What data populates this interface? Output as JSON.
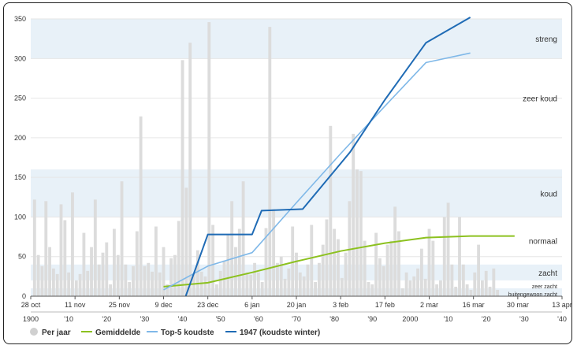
{
  "colors": {
    "band": "#e8f1f8",
    "bars": "#dcdcdc",
    "average": "#8cc11f",
    "top5": "#7fb8e8",
    "winter1947": "#1f6bb5",
    "grid": "#e6e6e6",
    "axis": "#555555"
  },
  "chart_data": {
    "type": "bar",
    "ylim": [
      0,
      360
    ],
    "grid": true,
    "legend_position": "bottom",
    "y_ticks": [
      "0",
      "50",
      "100",
      "150",
      "200",
      "250",
      "300",
      "350"
    ],
    "x_ticks_date": [
      "28 oct",
      "11 nov",
      "25 nov",
      "9 dec",
      "23 dec",
      "6 jan",
      "20 jan",
      "3 feb",
      "17 feb",
      "2 mar",
      "16 mar",
      "30 mar",
      "13 apr"
    ],
    "x_ticks_year": [
      "1900",
      "'10",
      "'20",
      "'30",
      "'40",
      "'50",
      "'60",
      "'70",
      "'80",
      "'90",
      "2000",
      "'10",
      "'20",
      "'30",
      "'40"
    ],
    "bands": [
      {
        "label": "streng",
        "from": 300,
        "to": 350
      },
      {
        "label": "zeer koud",
        "from": 200,
        "to": 300
      },
      {
        "label": "koud",
        "from": 100,
        "to": 160
      },
      {
        "label": "normaal",
        "from": 40,
        "to": 100
      },
      {
        "label": "zacht",
        "from": 20,
        "to": 40
      },
      {
        "label": "zeer zacht",
        "from": 10,
        "to": 20
      },
      {
        "label": "buitengewoon zacht",
        "from": 0,
        "to": 10
      }
    ],
    "series": [
      {
        "name": "Per jaar",
        "type": "bar",
        "x": [
          1901,
          1902,
          1903,
          1904,
          1905,
          1906,
          1907,
          1908,
          1909,
          1910,
          1911,
          1912,
          1913,
          1914,
          1915,
          1916,
          1917,
          1918,
          1919,
          1920,
          1921,
          1922,
          1923,
          1924,
          1925,
          1926,
          1927,
          1928,
          1929,
          1930,
          1931,
          1932,
          1933,
          1934,
          1935,
          1936,
          1937,
          1938,
          1939,
          1940,
          1941,
          1942,
          1943,
          1944,
          1945,
          1946,
          1947,
          1948,
          1949,
          1950,
          1951,
          1952,
          1953,
          1954,
          1955,
          1956,
          1957,
          1958,
          1959,
          1960,
          1961,
          1962,
          1963,
          1964,
          1965,
          1966,
          1967,
          1968,
          1969,
          1970,
          1971,
          1972,
          1973,
          1974,
          1975,
          1976,
          1977,
          1978,
          1979,
          1980,
          1981,
          1982,
          1983,
          1984,
          1985,
          1986,
          1987,
          1988,
          1989,
          1990,
          1991,
          1992,
          1993,
          1994,
          1995,
          1996,
          1997,
          1998,
          1999,
          2000,
          2001,
          2002,
          2003,
          2004,
          2005,
          2006,
          2007,
          2008,
          2009,
          2010,
          2011,
          2012,
          2013,
          2014,
          2015,
          2016,
          2017,
          2018,
          2019,
          2020,
          2021,
          2022,
          2023
        ],
        "values": [
          122,
          52,
          38,
          120,
          62,
          35,
          28,
          116,
          96,
          30,
          131,
          20,
          28,
          80,
          32,
          62,
          122,
          40,
          55,
          68,
          15,
          85,
          52,
          145,
          40,
          18,
          38,
          82,
          227,
          38,
          42,
          31,
          88,
          30,
          62,
          15,
          48,
          52,
          95,
          298,
          137,
          320,
          28,
          58,
          31,
          25,
          346,
          90,
          15,
          32,
          45,
          78,
          120,
          62,
          85,
          145,
          30,
          27,
          42,
          30,
          18,
          86,
          340,
          110,
          42,
          50,
          22,
          35,
          88,
          55,
          30,
          25,
          40,
          90,
          18,
          42,
          65,
          97,
          215,
          85,
          72,
          23,
          55,
          120,
          205,
          160,
          158,
          70,
          18,
          15,
          80,
          48,
          38,
          65,
          70,
          113,
          82,
          10,
          30,
          20,
          25,
          35,
          60,
          22,
          85,
          70,
          15,
          20,
          100,
          118,
          40,
          12,
          100,
          40,
          15,
          8,
          30,
          65,
          20,
          32,
          12,
          35,
          8
        ]
      },
      {
        "name": "Gemiddelde",
        "type": "line",
        "x_units": "date",
        "points": [
          [
            "9 dec",
            12
          ],
          [
            "23 dec",
            17
          ],
          [
            "6 jan",
            30
          ],
          [
            "20 jan",
            44
          ],
          [
            "3 feb",
            57
          ],
          [
            "17 feb",
            67
          ],
          [
            "2 mar",
            74
          ],
          [
            "16 mar",
            76
          ],
          [
            "30 mar",
            76
          ]
        ]
      },
      {
        "name": "Top-5 koudste",
        "type": "line",
        "x_units": "date",
        "points": [
          [
            "9 dec",
            8
          ],
          [
            "23 dec",
            38
          ],
          [
            "6 jan",
            55
          ],
          [
            "20 jan",
            118
          ],
          [
            "3 feb",
            180
          ],
          [
            "17 feb",
            240
          ],
          [
            "2 mar",
            295
          ],
          [
            "16 mar",
            307
          ]
        ]
      },
      {
        "name": "1947 (koudste winter)",
        "type": "line",
        "x_units": "date",
        "points": [
          [
            "16 dec",
            0
          ],
          [
            "23 dec",
            78
          ],
          [
            "6 jan",
            78
          ],
          [
            "9 jan",
            108
          ],
          [
            "22 jan",
            110
          ],
          [
            "6 feb",
            182
          ],
          [
            "17 feb",
            248
          ],
          [
            "2 mar",
            320
          ],
          [
            "16 mar",
            352
          ]
        ]
      }
    ]
  },
  "legend": {
    "per_jaar": "Per jaar",
    "gemiddelde": "Gemiddelde",
    "top5": "Top-5 koudste",
    "w1947": "1947 (koudste winter)"
  }
}
